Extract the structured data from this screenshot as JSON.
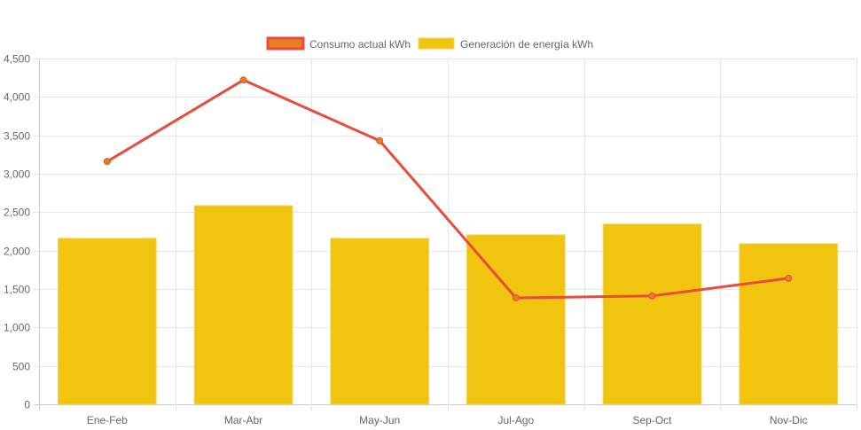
{
  "chart_data": {
    "type": "bar",
    "title": "",
    "xlabel": "",
    "ylabel": "",
    "categories": [
      "Ene-Feb",
      "Mar-Abr",
      "May-Jun",
      "Jul-Ago",
      "Sep-Oct",
      "Nov-Dic"
    ],
    "ylim": [
      0,
      4500
    ],
    "yticks": [
      0,
      500,
      1000,
      1500,
      2000,
      2500,
      3000,
      3500,
      4000,
      4500
    ],
    "ytick_labels": [
      "0",
      "500",
      "1,000",
      "1,500",
      "2,000",
      "2,500",
      "3,000",
      "3,500",
      "4,000",
      "4,500"
    ],
    "grid": true,
    "legend_position": "top-center",
    "series": [
      {
        "name": "Consumo actual kWh",
        "type": "line",
        "color": "#e74c3c",
        "point_color": "#e67e22",
        "values": [
          3160,
          4220,
          3430,
          1385,
          1410,
          1640
        ]
      },
      {
        "name": "Generación de energía kWh",
        "type": "bar",
        "color": "#f1c40f",
        "values": [
          2160,
          2585,
          2160,
          2205,
          2345,
          2090
        ]
      }
    ]
  }
}
